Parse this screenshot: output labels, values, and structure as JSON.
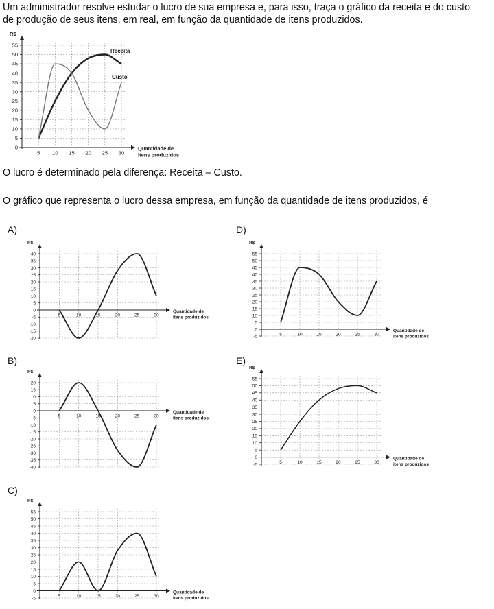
{
  "question": {
    "intro_line1": "Um administrador resolve estudar o lucro de sua empresa e, para isso, traça o gráfico da receita e do custo",
    "intro_line2": "de produção de seus itens, em real, em função da quantidade de itens produzidos.",
    "lucro_text": "O lucro é determinado pela diferença: Receita – Custo.",
    "prompt_text": "O gráfico que representa o lucro dessa empresa, em função da quantidade de itens produzidos, é"
  },
  "chart_data": [
    {
      "id": "main",
      "type": "line",
      "ylabel": "R$",
      "xlabel_lines": [
        "Quantidade de",
        "itens produzidos"
      ],
      "x_ticks": [
        5,
        10,
        15,
        20,
        25,
        30
      ],
      "y_ticks": [
        0,
        5,
        10,
        15,
        20,
        25,
        30,
        35,
        40,
        45,
        50,
        55
      ],
      "xlim": [
        0,
        30
      ],
      "ylim": [
        0,
        55
      ],
      "grid": true,
      "series": [
        {
          "name": "Receita",
          "x": [
            5,
            10,
            15,
            20,
            25,
            30
          ],
          "y": [
            5,
            25,
            40,
            48,
            50,
            45
          ]
        },
        {
          "name": "Custo",
          "x": [
            5,
            10,
            15,
            20,
            25,
            30
          ],
          "y": [
            5,
            45,
            40,
            20,
            10,
            35
          ]
        }
      ]
    },
    {
      "id": "A",
      "type": "line",
      "ylabel": "R$",
      "xlabel_lines": [
        "Quantidade de",
        "itens produzidos"
      ],
      "x_ticks": [
        5,
        10,
        15,
        20,
        25,
        30
      ],
      "y_ticks": [
        -20,
        -15,
        -10,
        -5,
        0,
        5,
        10,
        15,
        20,
        25,
        30,
        35,
        40
      ],
      "xlim": [
        0,
        30
      ],
      "ylim": [
        -20,
        40
      ],
      "grid": true,
      "series": [
        {
          "x": [
            5,
            10,
            15,
            20,
            25,
            30
          ],
          "y": [
            0,
            -20,
            0,
            28,
            40,
            10
          ]
        }
      ]
    },
    {
      "id": "B",
      "type": "line",
      "ylabel": "R$",
      "xlabel_lines": [
        "Quantidade de",
        "itens produzidos"
      ],
      "x_ticks": [
        5,
        10,
        15,
        20,
        25,
        30
      ],
      "y_ticks": [
        -40,
        -35,
        -30,
        -25,
        -20,
        -15,
        -10,
        -5,
        0,
        5,
        10,
        15,
        20
      ],
      "xlim": [
        0,
        30
      ],
      "ylim": [
        -40,
        20
      ],
      "grid": true,
      "series": [
        {
          "x": [
            5,
            10,
            15,
            20,
            25,
            30
          ],
          "y": [
            0,
            20,
            0,
            -28,
            -40,
            -10
          ]
        }
      ]
    },
    {
      "id": "C",
      "type": "line",
      "ylabel": "R$",
      "xlabel_lines": [
        "Quantidade de",
        "itens produzidos"
      ],
      "x_ticks": [
        5,
        10,
        15,
        20,
        25,
        30
      ],
      "y_ticks": [
        -5,
        0,
        5,
        10,
        15,
        20,
        25,
        30,
        35,
        40,
        45,
        50,
        55
      ],
      "xlim": [
        0,
        30
      ],
      "ylim": [
        -5,
        55
      ],
      "grid": true,
      "series": [
        {
          "x": [
            5,
            10,
            15,
            20,
            25,
            30
          ],
          "y": [
            0,
            20,
            0,
            28,
            40,
            10
          ]
        }
      ]
    },
    {
      "id": "D",
      "type": "line",
      "ylabel": "R$",
      "xlabel_lines": [
        "Quantidade de",
        "itens produzidos"
      ],
      "x_ticks": [
        5,
        10,
        15,
        20,
        25,
        30
      ],
      "y_ticks": [
        -5,
        0,
        5,
        10,
        15,
        20,
        25,
        30,
        35,
        40,
        45,
        50,
        55
      ],
      "xlim": [
        0,
        30
      ],
      "ylim": [
        -5,
        55
      ],
      "grid": true,
      "series": [
        {
          "x": [
            5,
            10,
            15,
            20,
            25,
            30
          ],
          "y": [
            5,
            45,
            40,
            20,
            10,
            35
          ]
        }
      ]
    },
    {
      "id": "E",
      "type": "line",
      "ylabel": "R$",
      "xlabel_lines": [
        "Quantidade de",
        "itens produzidos"
      ],
      "x_ticks": [
        5,
        10,
        15,
        20,
        25,
        30
      ],
      "y_ticks": [
        -5,
        0,
        5,
        10,
        15,
        20,
        25,
        30,
        35,
        40,
        45,
        50,
        55
      ],
      "xlim": [
        0,
        30
      ],
      "ylim": [
        -5,
        55
      ],
      "grid": true,
      "series": [
        {
          "x": [
            5,
            10,
            15,
            20,
            25,
            30
          ],
          "y": [
            5,
            25,
            40,
            48,
            50,
            45
          ]
        }
      ]
    }
  ],
  "options": {
    "A": "A)",
    "B": "B)",
    "C": "C)",
    "D": "D)",
    "E": "E)"
  }
}
